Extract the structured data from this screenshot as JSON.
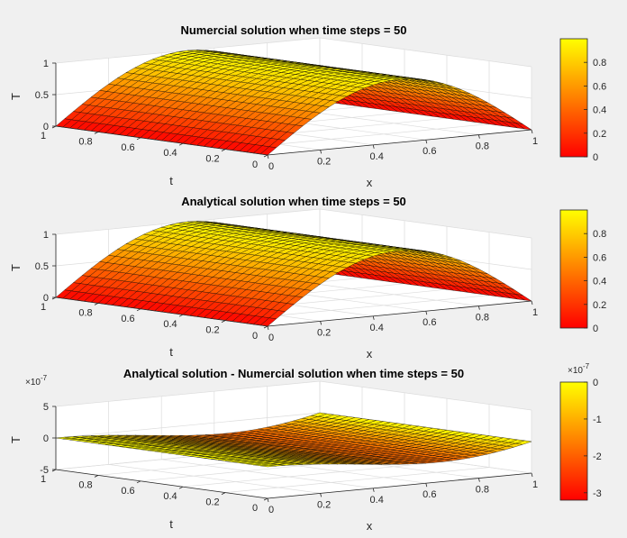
{
  "figure": {
    "background": "#f0f0f0",
    "colormap": "autumn",
    "colormap_stops": [
      "#ff0000",
      "#ffff00"
    ]
  },
  "chart_data": [
    {
      "type": "surface",
      "title": "Numercial solution when time steps = 50",
      "xlabel": "x",
      "ylabel": "t",
      "zlabel": "T",
      "xlim": [
        0,
        1
      ],
      "ylim": [
        0,
        1
      ],
      "zlim": [
        0,
        1
      ],
      "x_ticks": [
        "0",
        "0.2",
        "0.4",
        "0.6",
        "0.8",
        "1"
      ],
      "y_ticks": [
        "0",
        "0.2",
        "0.4",
        "0.6",
        "0.8",
        "1"
      ],
      "z_ticks": [
        "0",
        "0.5",
        "1"
      ],
      "z_exponent": "",
      "colorbar": {
        "range": [
          0,
          1
        ],
        "ticks": [
          "0",
          "0.2",
          "0.4",
          "0.6",
          "0.8"
        ],
        "exponent": ""
      },
      "function": "sin(pi*x)",
      "z_peak": 1,
      "grid": true
    },
    {
      "type": "surface",
      "title": "Analytical solution when time steps = 50",
      "xlabel": "x",
      "ylabel": "t",
      "zlabel": "T",
      "xlim": [
        0,
        1
      ],
      "ylim": [
        0,
        1
      ],
      "zlim": [
        0,
        1
      ],
      "x_ticks": [
        "0",
        "0.2",
        "0.4",
        "0.6",
        "0.8",
        "1"
      ],
      "y_ticks": [
        "0",
        "0.2",
        "0.4",
        "0.6",
        "0.8",
        "1"
      ],
      "z_ticks": [
        "0",
        "0.5",
        "1"
      ],
      "z_exponent": "",
      "colorbar": {
        "range": [
          0,
          1
        ],
        "ticks": [
          "0",
          "0.2",
          "0.4",
          "0.6",
          "0.8"
        ],
        "exponent": ""
      },
      "function": "sin(pi*x)",
      "z_peak": 1,
      "grid": true
    },
    {
      "type": "surface",
      "title": "Analytical solution - Numercial solution when time steps = 50",
      "xlabel": "x",
      "ylabel": "t",
      "zlabel": "T",
      "xlim": [
        0,
        1
      ],
      "ylim": [
        0,
        1
      ],
      "zlim": [
        -5e-07,
        5e-07
      ],
      "x_ticks": [
        "0",
        "0.2",
        "0.4",
        "0.6",
        "0.8",
        "1"
      ],
      "y_ticks": [
        "0",
        "0.2",
        "0.4",
        "0.6",
        "0.8",
        "1"
      ],
      "z_ticks": [
        "-5",
        "0",
        "5"
      ],
      "z_exponent": "×10^-7",
      "colorbar": {
        "range": [
          -3.2e-07,
          0
        ],
        "ticks": [
          "-3",
          "-2",
          "-1",
          "0"
        ],
        "exponent": "×10^-7"
      },
      "function": "-3.2e-7*sin(pi*x)*x",
      "z_peak": -3.2e-07,
      "grid": true
    }
  ]
}
